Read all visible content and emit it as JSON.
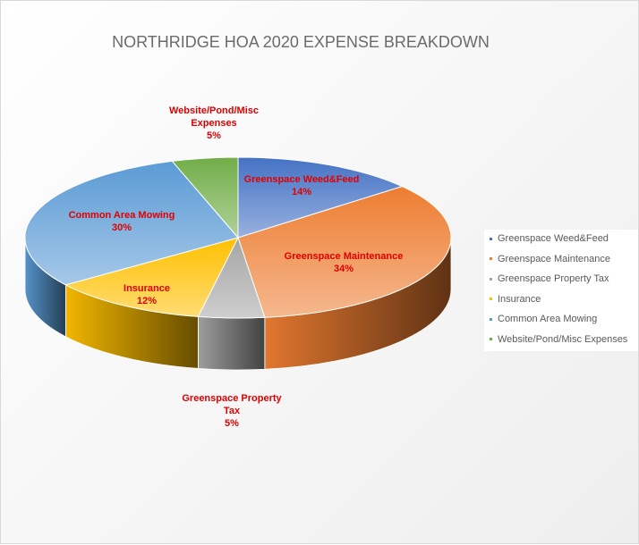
{
  "chart_data": {
    "type": "pie",
    "title": "NORTHRIDGE HOA 2020 EXPENSE BREAKDOWN",
    "categories": [
      "Greenspace Weed&Feed",
      "Greenspace Maintenance",
      "Greenspace Property Tax",
      "Insurance",
      "Common Area Mowing",
      "Website/Pond/Misc Expenses"
    ],
    "values": [
      14,
      34,
      5,
      12,
      30,
      5
    ],
    "data_labels": [
      "Greenspace Weed&Feed\n14%",
      "Greenspace Maintenance\n34%",
      "Greenspace Property\nTax\n5%",
      "Insurance\n12%",
      "Common Area Mowing\n30%",
      "Website/Pond/Misc\nExpenses\n5%"
    ],
    "colors": [
      "#4472c4",
      "#ed7d31",
      "#a5a5a5",
      "#ffc000",
      "#5b9bd5",
      "#70ad47"
    ],
    "label_color": "#e00000",
    "style": "3d",
    "legend_position": "right"
  }
}
